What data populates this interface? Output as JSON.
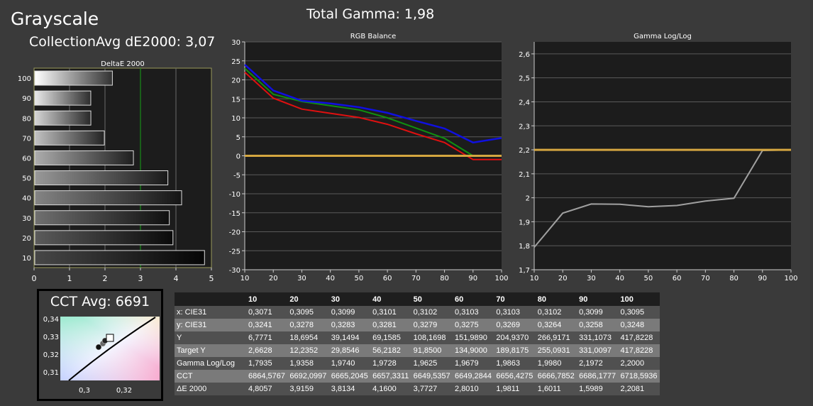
{
  "header": {
    "title": "Grayscale",
    "collection_avg": "CollectionAvg dE2000: 3,07",
    "total_gamma": "Total Gamma: 1,98"
  },
  "colors": {
    "red": "#e01010",
    "green": "#109010",
    "blue": "#1010e0",
    "target": "#d4a640",
    "gamma_line": "#a0a0a0",
    "marker": "#188c18"
  },
  "chart_data": [
    {
      "type": "bar",
      "orientation": "horizontal",
      "title": "DeltaE 2000",
      "categories": [
        "100",
        "90",
        "80",
        "70",
        "60",
        "50",
        "40",
        "30",
        "20",
        "10"
      ],
      "values": [
        2.2081,
        1.5989,
        1.6011,
        1.9811,
        2.801,
        3.7727,
        4.16,
        3.8134,
        3.9159,
        4.8057
      ],
      "xlim": [
        0,
        5
      ],
      "xticks": [
        "0",
        "1",
        "2",
        "3",
        "4",
        "5"
      ],
      "reference_line": 3
    },
    {
      "type": "line",
      "title": "RGB Balance",
      "x": [
        10,
        20,
        30,
        40,
        50,
        60,
        70,
        80,
        90,
        100
      ],
      "series": [
        {
          "color": "red",
          "values": [
            22,
            15.2,
            12.3,
            11.2,
            10.1,
            8.3,
            5.8,
            3.5,
            -1,
            -1
          ]
        },
        {
          "color": "green",
          "values": [
            23,
            16.2,
            14.3,
            13.2,
            12.1,
            10,
            7.3,
            4.6,
            0,
            0
          ]
        },
        {
          "color": "blue",
          "values": [
            24,
            17.2,
            14.5,
            13.8,
            12.8,
            11.3,
            9.2,
            7.2,
            3.5,
            4.7
          ]
        },
        {
          "color": "target",
          "values": [
            0,
            0,
            0,
            0,
            0,
            0,
            0,
            0,
            0,
            0
          ]
        }
      ],
      "xlim": [
        10,
        100
      ],
      "ylim": [
        -30,
        30
      ],
      "xticks": [
        "10",
        "20",
        "30",
        "40",
        "50",
        "60",
        "70",
        "80",
        "90",
        "100"
      ],
      "yticks": [
        "30",
        "25",
        "20",
        "15",
        "10",
        "5",
        "0",
        "-5",
        "-10",
        "-15",
        "-20",
        "-25",
        "-30"
      ],
      "grid": true
    },
    {
      "type": "line",
      "title": "Gamma Log/Log",
      "x": [
        10,
        20,
        30,
        40,
        50,
        60,
        70,
        80,
        90,
        100
      ],
      "series": [
        {
          "color": "gamma_line",
          "values": [
            1.7935,
            1.9358,
            1.974,
            1.9728,
            1.9625,
            1.9679,
            1.9863,
            1.998,
            2.1972,
            2.2
          ]
        },
        {
          "color": "target",
          "values": [
            2.2,
            2.2,
            2.2,
            2.2,
            2.2,
            2.2,
            2.2,
            2.2,
            2.2,
            2.2
          ]
        }
      ],
      "xlim": [
        10,
        100
      ],
      "ylim": [
        1.7,
        2.65
      ],
      "xticks": [
        "10",
        "20",
        "30",
        "40",
        "50",
        "60",
        "70",
        "80",
        "90",
        "100"
      ],
      "yticks": [
        "2,6",
        "2,5",
        "2,4",
        "2,3",
        "2,2",
        "2,1",
        "2",
        "1,9",
        "1,8",
        "1,7"
      ],
      "grid": true
    },
    {
      "type": "scatter",
      "title": "CCT Avg: 6691",
      "xticks": [
        "0,3",
        "0,32"
      ],
      "yticks": [
        "0,34",
        "0,33",
        "0,32",
        "0,31"
      ]
    },
    {
      "type": "table",
      "columns": [
        "",
        "10",
        "20",
        "30",
        "40",
        "50",
        "60",
        "70",
        "80",
        "90",
        "100"
      ],
      "rows": [
        {
          "label": "x: CIE31",
          "values": [
            "0,3071",
            "0,3095",
            "0,3099",
            "0,3101",
            "0,3102",
            "0,3103",
            "0,3103",
            "0,3102",
            "0,3099",
            "0,3095"
          ]
        },
        {
          "label": "y: CIE31",
          "values": [
            "0,3241",
            "0,3278",
            "0,3283",
            "0,3281",
            "0,3279",
            "0,3275",
            "0,3269",
            "0,3264",
            "0,3258",
            "0,3248"
          ]
        },
        {
          "label": "Y",
          "values": [
            "6,7771",
            "18,6954",
            "39,1494",
            "69,1585",
            "108,1698",
            "151,9890",
            "204,9370",
            "266,9171",
            "331,1073",
            "417,8228"
          ]
        },
        {
          "label": "Target Y",
          "values": [
            "2,6628",
            "12,2352",
            "29,8546",
            "56,2182",
            "91,8500",
            "134,9000",
            "189,8175",
            "255,0931",
            "331,0097",
            "417,8228"
          ]
        },
        {
          "label": "Gamma Log/Log",
          "values": [
            "1,7935",
            "1,9358",
            "1,9740",
            "1,9728",
            "1,9625",
            "1,9679",
            "1,9863",
            "1,9980",
            "2,1972",
            "2,2000"
          ]
        },
        {
          "label": "CCT",
          "values": [
            "6864,5767",
            "6692,0997",
            "6665,2045",
            "6657,3311",
            "6649,5357",
            "6649,2844",
            "6656,4275",
            "6666,7852",
            "6686,1777",
            "6718,5936"
          ]
        },
        {
          "label": "ΔE 2000",
          "values": [
            "4,8057",
            "3,9159",
            "3,8134",
            "4,1600",
            "3,7727",
            "2,8010",
            "1,9811",
            "1,6011",
            "1,5989",
            "2,2081"
          ]
        }
      ]
    }
  ]
}
